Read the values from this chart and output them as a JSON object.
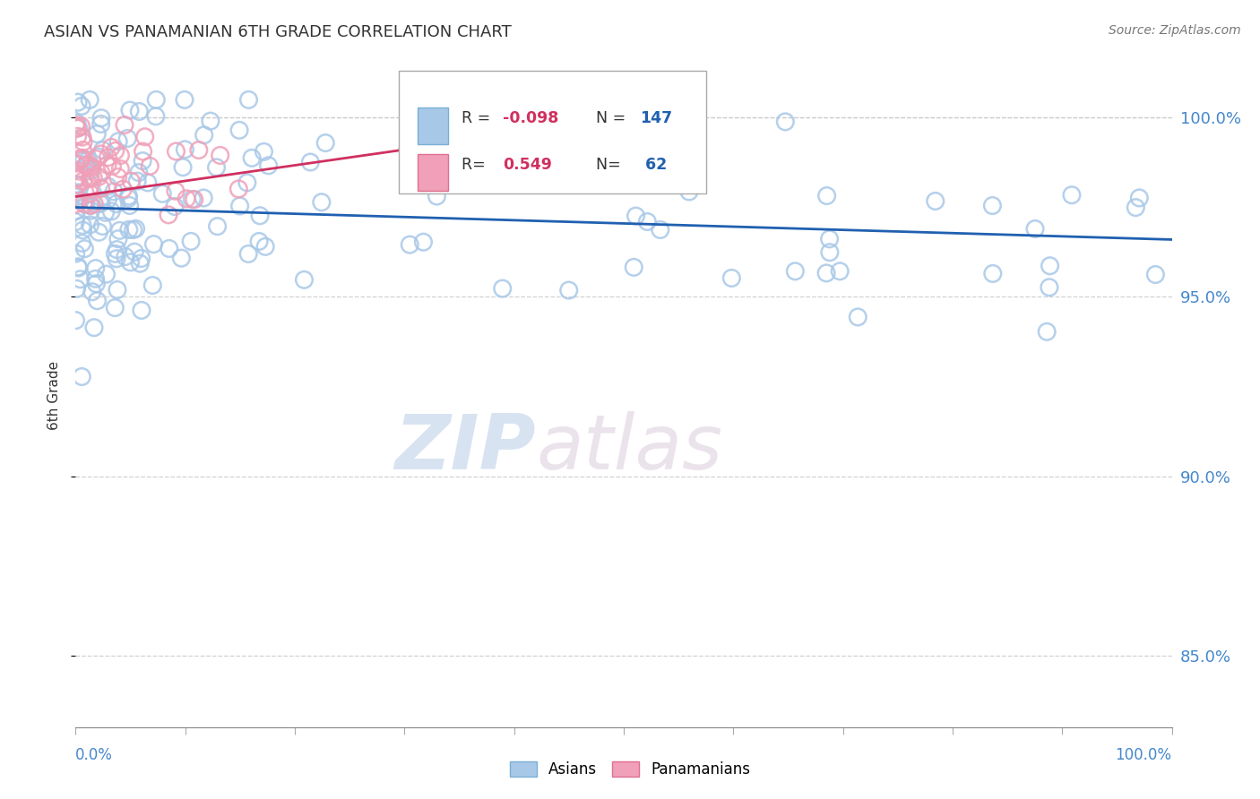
{
  "title": "ASIAN VS PANAMANIAN 6TH GRADE CORRELATION CHART",
  "source": "Source: ZipAtlas.com",
  "ylabel": "6th Grade",
  "asian_R": -0.098,
  "asian_N": 147,
  "pana_R": 0.549,
  "pana_N": 62,
  "asian_color": "#a8c8e8",
  "asian_edge_color": "#7aafd4",
  "pana_color": "#f0a0b8",
  "pana_edge_color": "#e07090",
  "asian_line_color": "#2060b0",
  "pana_line_color": "#d03060",
  "background_color": "#ffffff",
  "watermark_zip": "ZIP",
  "watermark_atlas": "atlas",
  "title_fontsize": 13,
  "right_tick_color": "#4488cc",
  "xlim": [
    0,
    100
  ],
  "ylim": [
    83.0,
    101.5
  ],
  "yticks": [
    85.0,
    90.0,
    95.0,
    100.0
  ],
  "ytick_labels": [
    "85.0%",
    "90.0%",
    "95.0%",
    "100.0%"
  ]
}
